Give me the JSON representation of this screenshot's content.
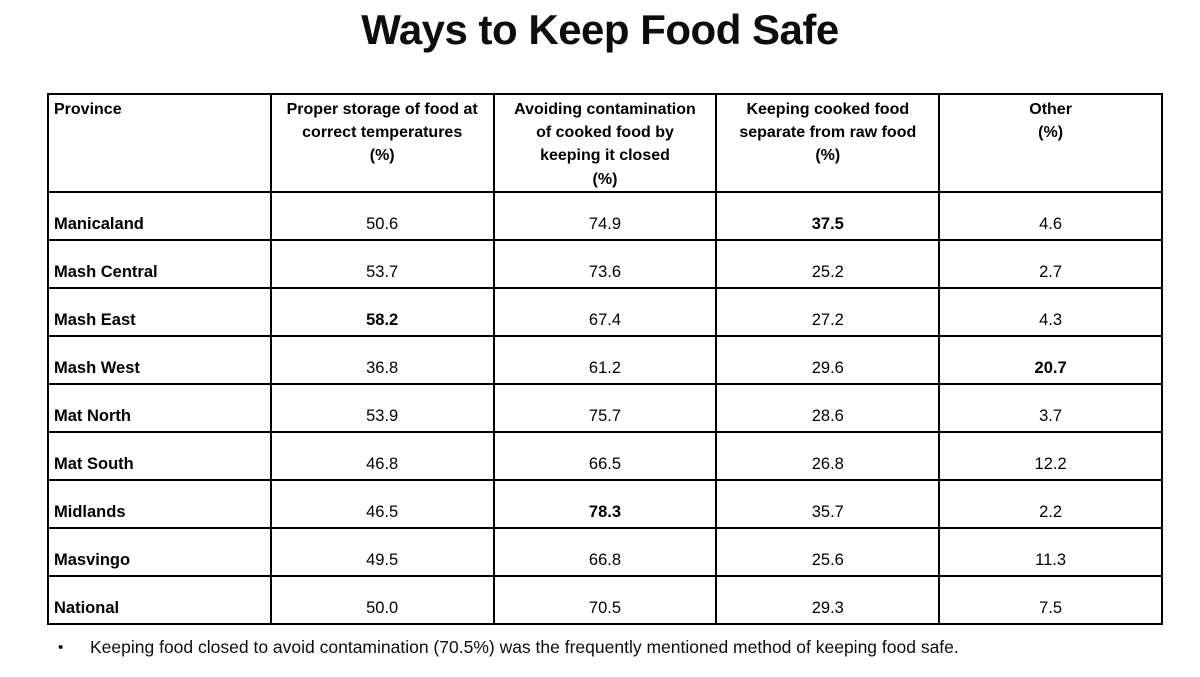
{
  "title": "Ways to Keep Food Safe",
  "chart_data": {
    "type": "table",
    "title": "Ways to Keep Food Safe",
    "columns": [
      "Province",
      "Proper storage of food at correct temperatures (%)",
      "Avoiding contamination of cooked food by keeping it closed (%)",
      "Keeping cooked food separate from raw food (%)",
      "Other (%)"
    ],
    "rows": [
      [
        "Manicaland",
        50.6,
        74.9,
        37.5,
        4.6
      ],
      [
        "Mash Central",
        53.7,
        73.6,
        25.2,
        2.7
      ],
      [
        "Mash East",
        58.2,
        67.4,
        27.2,
        4.3
      ],
      [
        "Mash West",
        36.8,
        61.2,
        29.6,
        20.7
      ],
      [
        "Mat North",
        53.9,
        75.7,
        28.6,
        3.7
      ],
      [
        "Mat South",
        46.8,
        66.5,
        26.8,
        12.2
      ],
      [
        "Midlands",
        46.5,
        78.3,
        35.7,
        2.2
      ],
      [
        "Masvingo",
        49.5,
        66.8,
        25.6,
        11.3
      ],
      [
        "National",
        50.0,
        70.5,
        29.3,
        7.5
      ]
    ],
    "bold_highlighted_cells_row_col": [
      [
        0,
        3
      ],
      [
        2,
        1
      ],
      [
        3,
        4
      ],
      [
        6,
        2
      ]
    ],
    "annotation": "Keeping food closed to avoid contamination (70.5%) was the frequently mentioned method of keeping food safe."
  },
  "table": {
    "header": [
      {
        "lines": [
          "Province"
        ],
        "align": "left"
      },
      {
        "lines": [
          "Proper storage of food at",
          "correct temperatures",
          "(%)"
        ],
        "align": "center"
      },
      {
        "lines": [
          "Avoiding contamination",
          "of cooked food by",
          "keeping it closed",
          "(%)"
        ],
        "align": "center"
      },
      {
        "lines": [
          "Keeping cooked food",
          "separate from raw food",
          "(%)"
        ],
        "align": "center"
      },
      {
        "lines": [
          "Other",
          "(%)"
        ],
        "align": "center"
      }
    ],
    "rows": [
      {
        "province": "Manicaland",
        "values": [
          "50.6",
          "74.9",
          "37.5",
          "4.6"
        ],
        "bold": [
          false,
          false,
          true,
          false
        ]
      },
      {
        "province": "Mash Central",
        "values": [
          "53.7",
          "73.6",
          "25.2",
          "2.7"
        ],
        "bold": [
          false,
          false,
          false,
          false
        ]
      },
      {
        "province": "Mash East",
        "values": [
          "58.2",
          "67.4",
          "27.2",
          "4.3"
        ],
        "bold": [
          true,
          false,
          false,
          false
        ]
      },
      {
        "province": "Mash West",
        "values": [
          "36.8",
          "61.2",
          "29.6",
          "20.7"
        ],
        "bold": [
          false,
          false,
          false,
          true
        ]
      },
      {
        "province": "Mat North",
        "values": [
          "53.9",
          "75.7",
          "28.6",
          "3.7"
        ],
        "bold": [
          false,
          false,
          false,
          false
        ]
      },
      {
        "province": "Mat South",
        "values": [
          "46.8",
          "66.5",
          "26.8",
          "12.2"
        ],
        "bold": [
          false,
          false,
          false,
          false
        ]
      },
      {
        "province": "Midlands",
        "values": [
          "46.5",
          "78.3",
          "35.7",
          "2.2"
        ],
        "bold": [
          false,
          true,
          false,
          false
        ]
      },
      {
        "province": "Masvingo",
        "values": [
          "49.5",
          "66.8",
          "25.6",
          "11.3"
        ],
        "bold": [
          false,
          false,
          false,
          false
        ]
      },
      {
        "province": "National",
        "values": [
          "50.0",
          "70.5",
          "29.3",
          "7.5"
        ],
        "bold": [
          false,
          false,
          false,
          false
        ]
      }
    ]
  },
  "footnote": {
    "bullet": "•",
    "text": "Keeping food closed to avoid contamination (70.5%) was the frequently mentioned method of keeping food safe."
  }
}
